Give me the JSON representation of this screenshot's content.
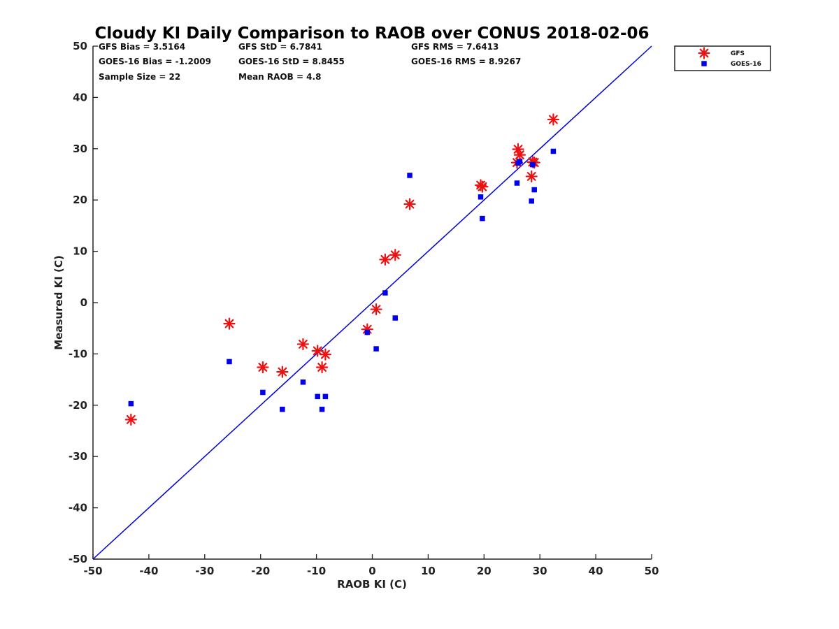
{
  "chart_data": {
    "type": "scatter",
    "title": "Cloudy KI Daily Comparison to RAOB over CONUS 2018-02-06",
    "xlabel": "RAOB KI (C)",
    "ylabel": "Measured KI (C)",
    "xlim": [
      -50,
      50
    ],
    "ylim": [
      -50,
      50
    ],
    "xticks": [
      "-50",
      "-40",
      "-30",
      "-20",
      "-10",
      "0",
      "10",
      "20",
      "30",
      "40",
      "50"
    ],
    "yticks": [
      "50",
      "40",
      "30",
      "20",
      "10",
      "0",
      "-10",
      "-20",
      "-30",
      "-40",
      "-50"
    ],
    "grid": false,
    "legend_position": "top-right, outside plot",
    "reference_line": {
      "label": "1:1",
      "color": "#0000dd"
    },
    "stats": [
      "GFS Bias = 3.5164",
      "GFS StD = 6.7841",
      "GFS RMS = 7.6413",
      "GOES-16 Bias = -1.2009",
      "GOES-16 StD = 8.8455",
      "GOES-16 RMS = 8.9267",
      "Sample Size = 22",
      "Mean RAOB = 4.8"
    ],
    "series": [
      {
        "name": "GFS",
        "marker": "asterisk",
        "color": "#ee1111",
        "points": [
          [
            -43.2,
            -22.8
          ],
          [
            -25.6,
            -4.1
          ],
          [
            -19.6,
            -12.6
          ],
          [
            -16.1,
            -13.5
          ],
          [
            -12.4,
            -8.1
          ],
          [
            -9.8,
            -9.4
          ],
          [
            -9.0,
            -12.6
          ],
          [
            -8.4,
            -10.1
          ],
          [
            -0.9,
            -5.2
          ],
          [
            0.7,
            -1.3
          ],
          [
            2.3,
            8.4
          ],
          [
            4.1,
            9.3
          ],
          [
            6.7,
            19.2
          ],
          [
            19.4,
            22.9
          ],
          [
            19.7,
            22.6
          ],
          [
            25.9,
            27.3
          ],
          [
            26.1,
            29.9
          ],
          [
            26.4,
            28.8
          ],
          [
            28.5,
            24.6
          ],
          [
            28.7,
            27.4
          ],
          [
            29.0,
            27.3
          ],
          [
            32.4,
            35.7
          ]
        ]
      },
      {
        "name": "GOES-16",
        "marker": "square",
        "color": "#0000ee",
        "points": [
          [
            -43.2,
            -19.7
          ],
          [
            -25.6,
            -11.5
          ],
          [
            -19.6,
            -17.5
          ],
          [
            -16.1,
            -20.8
          ],
          [
            -12.4,
            -15.5
          ],
          [
            -9.8,
            -18.3
          ],
          [
            -9.0,
            -20.8
          ],
          [
            -8.4,
            -18.3
          ],
          [
            -0.9,
            -5.8
          ],
          [
            0.7,
            -9.0
          ],
          [
            2.3,
            1.9
          ],
          [
            4.1,
            -3.0
          ],
          [
            6.7,
            24.8
          ],
          [
            19.4,
            20.6
          ],
          [
            19.7,
            16.4
          ],
          [
            25.9,
            23.3
          ],
          [
            26.1,
            27.2
          ],
          [
            26.4,
            27.5
          ],
          [
            28.5,
            19.8
          ],
          [
            28.7,
            26.9
          ],
          [
            29.0,
            22.0
          ],
          [
            32.4,
            29.5
          ]
        ]
      }
    ]
  }
}
